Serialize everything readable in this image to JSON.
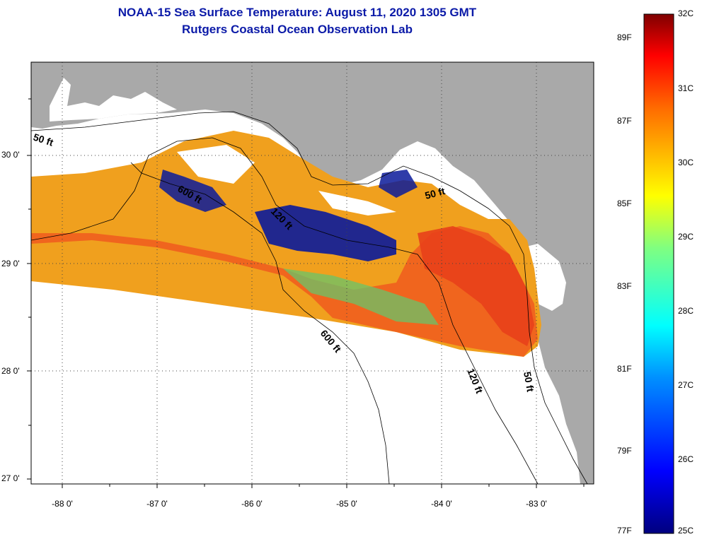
{
  "title_line1": "NOAA-15 Sea Surface Temperature:  August 11, 2020 1305 GMT",
  "title_line2": "Rutgers Coastal Ocean Observation Lab",
  "axes": {
    "lat_labels": [
      "30 0'",
      "29 0'",
      "28 0'",
      "27 0'"
    ],
    "lon_labels": [
      "-88 0'",
      "-87 0'",
      "-86 0'",
      "-85 0'",
      "-84 0'",
      "-83 0'"
    ]
  },
  "contour_labels": {
    "c50_west": "50 ft",
    "c600_west": "600 ft",
    "c120_mid": "120 ft",
    "c50_east": "50 ft",
    "c600_south": "600 ft",
    "c120_south": "120 ft",
    "c50_south": "50 ft"
  },
  "colorbar": {
    "fahrenheit": [
      "89F",
      "87F",
      "85F",
      "83F",
      "81F",
      "79F",
      "77F"
    ],
    "celsius": [
      "32C",
      "31C",
      "30C",
      "29C",
      "28C",
      "27C",
      "26C",
      "25C"
    ]
  },
  "colors": {
    "title": "#0b1aa8",
    "land": "#a9a9a9",
    "warm": "#f05a1e",
    "mid": "#f0a01e",
    "cool": "#0a1a9a"
  }
}
